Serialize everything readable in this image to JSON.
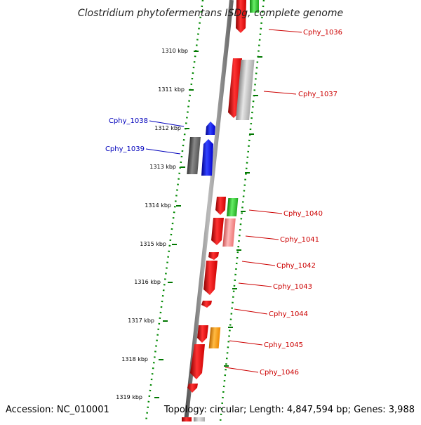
{
  "title": "Clostridium phytofermentans ISDg, complete genome",
  "footer": {
    "accession": "Accession: NC_010001",
    "summary": "Topology: circular; Length: 4,847,594 bp; Genes: 3,988"
  },
  "ticks": [
    "1310 kbp",
    "1311 kbp",
    "1312 kbp",
    "1313 kbp",
    "1314 kbp",
    "1315 kbp",
    "1316 kbp",
    "1317 kbp",
    "1318 kbp",
    "1319 kbp"
  ],
  "genes": [
    {
      "name": "Cphy_1036",
      "color": "#cc0000",
      "strand": "plus"
    },
    {
      "name": "Cphy_1037",
      "color": "#cc0000",
      "strand": "plus"
    },
    {
      "name": "Cphy_1038",
      "color": "#0000bb",
      "strand": "minus"
    },
    {
      "name": "Cphy_1039",
      "color": "#0000bb",
      "strand": "minus"
    },
    {
      "name": "Cphy_1040",
      "color": "#cc0000",
      "strand": "plus"
    },
    {
      "name": "Cphy_1041",
      "color": "#cc0000",
      "strand": "plus"
    },
    {
      "name": "Cphy_1042",
      "color": "#cc0000",
      "strand": "plus"
    },
    {
      "name": "Cphy_1043",
      "color": "#cc0000",
      "strand": "plus"
    },
    {
      "name": "Cphy_1044",
      "color": "#cc0000",
      "strand": "plus"
    },
    {
      "name": "Cphy_1045",
      "color": "#cc0000",
      "strand": "plus"
    },
    {
      "name": "Cphy_1046",
      "color": "#cc0000",
      "strand": "plus"
    }
  ],
  "colors": {
    "backbone": "#888888",
    "tick_green": "#007700",
    "red": "#ff0000",
    "gray": "#bbbbbb",
    "dark_gray": "#555555",
    "blue": "#0000ff",
    "green": "#33cc33",
    "pink": "#ff8888",
    "orange": "#ff9900"
  }
}
